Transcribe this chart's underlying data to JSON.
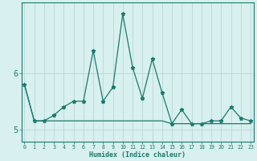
{
  "xlabel": "Humidex (Indice chaleur)",
  "x": [
    0,
    1,
    2,
    3,
    4,
    5,
    6,
    7,
    8,
    9,
    10,
    11,
    12,
    13,
    14,
    15,
    16,
    17,
    18,
    19,
    20,
    21,
    22,
    23
  ],
  "y_main": [
    5.8,
    5.15,
    5.15,
    5.25,
    5.4,
    5.5,
    5.5,
    6.4,
    5.5,
    5.75,
    7.05,
    6.1,
    5.55,
    6.25,
    5.65,
    5.1,
    5.35,
    5.1,
    5.1,
    5.15,
    5.15,
    5.4,
    5.2,
    5.15
  ],
  "y_avg": [
    5.8,
    5.15,
    5.15,
    5.15,
    5.15,
    5.15,
    5.15,
    5.15,
    5.15,
    5.15,
    5.15,
    5.15,
    5.15,
    5.15,
    5.15,
    5.1,
    5.1,
    5.1,
    5.1,
    5.1,
    5.1,
    5.1,
    5.1,
    5.1
  ],
  "line_color": "#1a7a6a",
  "bg_color": "#d8f0f0",
  "grid_color": "#b8d8d8",
  "axis_color": "#1a7a6a",
  "ylim": [
    4.78,
    7.25
  ],
  "yticks": [
    5,
    6
  ],
  "xlim": [
    -0.3,
    23.3
  ],
  "figsize": [
    3.2,
    2.0
  ],
  "dpi": 100
}
